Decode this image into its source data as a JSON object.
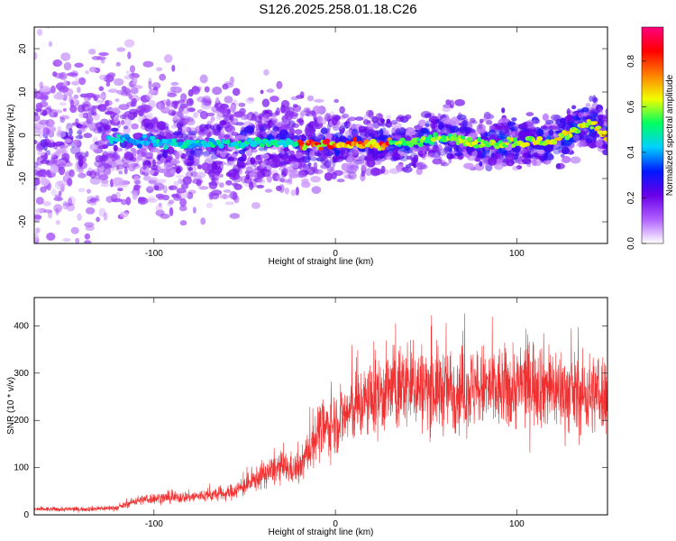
{
  "page": {
    "title": "S126.2025.258.01.18.C26"
  },
  "chart_data": [
    {
      "type": "heatmap",
      "title": "S126.2025.258.01.18.C26",
      "xlabel": "Height of straight line (km)",
      "ylabel": "Frequency (Hz)",
      "xlim": [
        -166,
        150
      ],
      "ylim": [
        -25,
        25
      ],
      "xticks": [
        -100,
        0,
        100
      ],
      "yticks": [
        -20,
        -10,
        0,
        10,
        20
      ],
      "grid": false,
      "colorbar": {
        "label": "Normalized spectral amplitude",
        "range": [
          0,
          0.95
        ],
        "ticks": [
          0.0,
          0.2,
          0.4,
          0.6,
          0.8
        ],
        "stops": [
          "#ffffff",
          "#b060ff",
          "#6a00e8",
          "#0018ff",
          "#00d0ff",
          "#00ff60",
          "#f0ff00",
          "#ff8000",
          "#ff0000",
          "#ff0080"
        ]
      },
      "ridge": {
        "x": [
          -120,
          -100,
          -80,
          -60,
          -40,
          -20,
          0,
          20,
          40,
          60,
          80,
          100,
          120,
          140,
          150
        ],
        "y": [
          -1,
          -1.5,
          -2,
          -2,
          -1.5,
          -2,
          -2,
          -2,
          -2,
          0,
          -2,
          -1.5,
          -1.5,
          3,
          -0.5
        ],
        "peak_amplitude_range": [
          -20,
          30
        ]
      }
    },
    {
      "type": "line",
      "xlabel": "Height of straight line (km)",
      "ylabel": "SNR (10 * v/v)",
      "xlim": [
        -166,
        150
      ],
      "ylim": [
        0,
        460
      ],
      "xticks": [
        -100,
        0,
        100
      ],
      "yticks": [
        0,
        100,
        200,
        300,
        400
      ],
      "grid": false,
      "color": "#f03030",
      "series": [
        {
          "name": "SNR",
          "x": [
            -166,
            -140,
            -120,
            -110,
            -100,
            -80,
            -60,
            -50,
            -40,
            -30,
            -20,
            -10,
            0,
            10,
            20,
            30,
            40,
            50,
            60,
            70,
            80,
            90,
            100,
            110,
            120,
            130,
            140,
            150
          ],
          "values": [
            12,
            12,
            15,
            30,
            35,
            38,
            45,
            60,
            85,
            100,
            95,
            175,
            195,
            225,
            245,
            265,
            275,
            270,
            265,
            265,
            270,
            265,
            270,
            285,
            270,
            255,
            255,
            260
          ]
        }
      ]
    }
  ]
}
